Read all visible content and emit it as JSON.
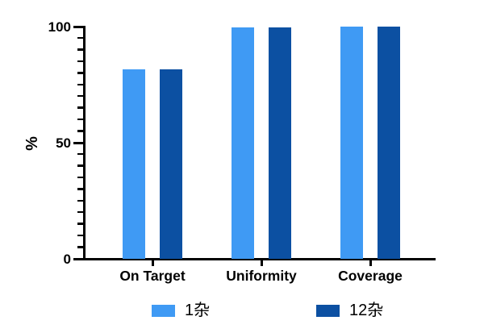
{
  "chart_data": {
    "type": "bar",
    "title": "",
    "categories": [
      "On Target",
      "Uniformity",
      "Coverage"
    ],
    "series": [
      {
        "name": "1杂",
        "color": "#3F9AF4",
        "values": [
          81.5,
          99.7,
          100
        ]
      },
      {
        "name": "12杂",
        "color": "#0C50A2",
        "values": [
          81.7,
          99.8,
          100
        ]
      }
    ],
    "xlabel": "",
    "ylabel": "%",
    "ylim": [
      0,
      100
    ],
    "yticks": [
      0,
      50,
      100
    ],
    "ytick_labels": [
      "0",
      "50",
      "100"
    ],
    "minor_tick_interval": 5,
    "grid": false,
    "legend_position": "bottom",
    "axis_color": "#000000",
    "background_color": "#ffffff"
  },
  "legend": {
    "items": [
      {
        "label": "1杂",
        "color": "#3F9AF4"
      },
      {
        "label": "12杂",
        "color": "#0C50A2"
      }
    ]
  }
}
